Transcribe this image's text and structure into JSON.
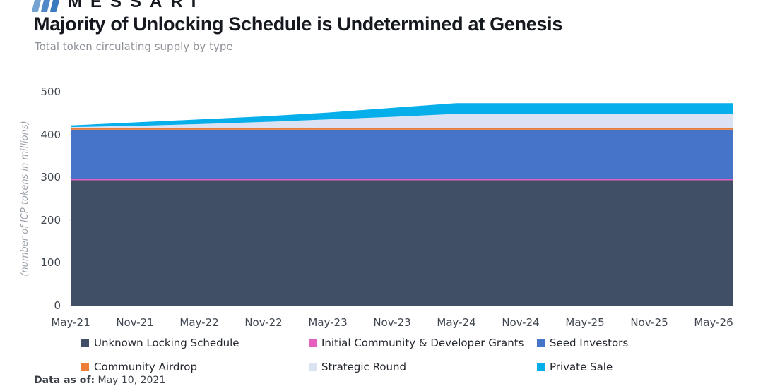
{
  "brand": {
    "wordmark": "MESSARI",
    "logo_icon": "messari-bars-icon",
    "bar_colors": [
      "#74A3D2",
      "#4F88C6",
      "#3A7ABF"
    ]
  },
  "header": {
    "title": "Majority of Unlocking Schedule is Undetermined at Genesis",
    "subtitle": "Total token circulating supply by type"
  },
  "footer": {
    "data_as_of_label": "Data as of:",
    "data_as_of_value": " May 10, 2021"
  },
  "chart_data": {
    "type": "area",
    "stacked": true,
    "title": "Majority of Unlocking Schedule is Undetermined at Genesis",
    "subtitle": "Total token circulating supply by type",
    "ylabel": "(number of ICP tokens in millions)",
    "xlabel": "",
    "ylim": [
      0,
      500
    ],
    "yticks": [
      0,
      100,
      200,
      300,
      400,
      500
    ],
    "grid": "horizontal",
    "gridline_color": "#E7E8EA",
    "legend_position": "bottom",
    "x": [
      "May-21",
      "Nov-21",
      "May-22",
      "Nov-22",
      "May-23",
      "Nov-23",
      "May-24",
      "Nov-24",
      "May-25",
      "Nov-25",
      "May-26"
    ],
    "series": [
      {
        "name": "Unknown Locking Schedule",
        "color": "#404E66",
        "values": [
          293,
          293,
          293,
          293,
          293,
          293,
          293,
          293,
          293,
          293,
          293
        ]
      },
      {
        "name": "Initial Community & Developer Grants",
        "color": "#E661BE",
        "values": [
          2.4,
          2.4,
          2.4,
          2.4,
          2.4,
          2.4,
          2.4,
          2.4,
          2.4,
          2.4,
          2.4
        ]
      },
      {
        "name": "Seed Investors",
        "color": "#4574C8",
        "values": [
          116,
          116,
          116,
          116,
          116,
          116,
          116,
          116,
          116,
          116,
          116
        ]
      },
      {
        "name": "Community Airdrop",
        "color": "#EC7D33",
        "values": [
          3.8,
          3.8,
          3.8,
          3.8,
          3.8,
          3.8,
          3.8,
          3.8,
          3.8,
          3.8,
          3.8
        ]
      },
      {
        "name": "Strategic Round",
        "color": "#DBE2F3",
        "values": [
          2,
          5,
          9,
          14,
          20,
          26,
          33,
          33,
          33,
          33,
          33
        ]
      },
      {
        "name": "Private Sale",
        "color": "#06AEEA",
        "values": [
          4,
          8,
          11,
          13,
          16,
          21,
          25,
          25,
          25,
          25,
          25
        ]
      }
    ]
  }
}
